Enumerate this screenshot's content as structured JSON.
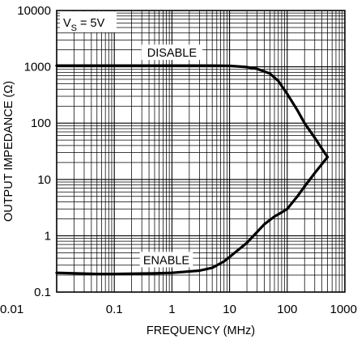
{
  "chart_data": {
    "type": "line",
    "xlabel": "FREQUENCY (MHz)",
    "ylabel": "OUTPUT IMPEDANCE (Ω)",
    "x_scale": "log",
    "y_scale": "log",
    "xlim": [
      0.01,
      1000
    ],
    "ylim": [
      0.1,
      10000
    ],
    "grid": true,
    "x_ticks": [
      0.01,
      0.1,
      1,
      10,
      100,
      1000
    ],
    "x_tick_labels": [
      "0.01",
      "0.1",
      "1",
      "10",
      "100",
      "1000"
    ],
    "y_ticks": [
      0.1,
      1,
      10,
      100,
      1000,
      10000
    ],
    "y_tick_labels": [
      "0.1",
      "1",
      "10",
      "100",
      "1000",
      "10000"
    ],
    "condition": {
      "main": "V",
      "sub": "S",
      "rest": " = 5V"
    },
    "series": [
      {
        "name": "DISABLE",
        "x": [
          0.01,
          0.1,
          1,
          5,
          10,
          20,
          30,
          50,
          70,
          100,
          150,
          200,
          300,
          400,
          500
        ],
        "y": [
          1050,
          1050,
          1050,
          1050,
          1040,
          990,
          920,
          760,
          560,
          330,
          170,
          100,
          55,
          35,
          25
        ]
      },
      {
        "name": "ENABLE",
        "x": [
          0.01,
          0.05,
          0.1,
          0.5,
          1,
          3,
          5,
          8,
          10,
          20,
          40,
          60,
          80,
          100,
          150,
          200,
          300,
          500
        ],
        "y": [
          0.22,
          0.21,
          0.21,
          0.215,
          0.22,
          0.24,
          0.27,
          0.35,
          0.42,
          0.75,
          1.6,
          2.2,
          2.6,
          3.0,
          5.0,
          7.5,
          13,
          25
        ]
      }
    ]
  }
}
